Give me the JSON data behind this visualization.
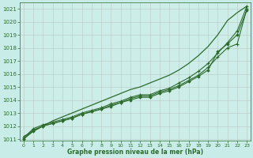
{
  "title": "Graphe pression niveau de la mer (hPa)",
  "xlabel": "Graphe pression niveau de la mer (hPa)",
  "background_color": "#c8ece8",
  "plot_bg_color": "#cdeee8",
  "line_color": "#2d6b2d",
  "ylim_min": 1011.0,
  "ylim_max": 1021.5,
  "xlim_min": -0.4,
  "xlim_max": 23.4,
  "yticks": [
    1011,
    1012,
    1013,
    1014,
    1015,
    1016,
    1017,
    1018,
    1019,
    1020,
    1021
  ],
  "xticks": [
    0,
    1,
    2,
    3,
    4,
    5,
    6,
    7,
    8,
    9,
    10,
    11,
    12,
    13,
    14,
    15,
    16,
    17,
    18,
    19,
    20,
    21,
    22,
    23
  ],
  "line_smooth": [
    1011.2,
    1011.6,
    1012.0,
    1012.4,
    1012.7,
    1013.0,
    1013.3,
    1013.6,
    1013.9,
    1014.2,
    1014.5,
    1014.8,
    1015.0,
    1015.3,
    1015.6,
    1015.9,
    1016.3,
    1016.8,
    1017.4,
    1018.1,
    1019.0,
    1020.1,
    1020.7,
    1021.2
  ],
  "line_markers1": [
    1011.1,
    1011.8,
    1012.1,
    1012.3,
    1012.5,
    1012.7,
    1013.0,
    1013.2,
    1013.4,
    1013.7,
    1013.9,
    1014.2,
    1014.4,
    1014.4,
    1014.7,
    1014.9,
    1015.3,
    1015.7,
    1016.2,
    1016.8,
    1017.6,
    1018.4,
    1019.3,
    1021.2
  ],
  "line_markers2": [
    1011.0,
    1011.7,
    1012.0,
    1012.2,
    1012.4,
    1012.6,
    1012.9,
    1013.1,
    1013.3,
    1013.6,
    1013.8,
    1014.1,
    1014.3,
    1014.3,
    1014.6,
    1014.8,
    1015.1,
    1015.5,
    1015.9,
    1016.5,
    1017.3,
    1018.0,
    1018.3,
    1021.0
  ],
  "line_markers3": [
    1011.0,
    1011.6,
    1012.0,
    1012.2,
    1012.4,
    1012.6,
    1012.9,
    1013.1,
    1013.3,
    1013.5,
    1013.8,
    1014.0,
    1014.2,
    1014.2,
    1014.5,
    1014.7,
    1015.0,
    1015.4,
    1015.8,
    1016.3,
    1017.7,
    1018.3,
    1019.0,
    1020.9
  ]
}
